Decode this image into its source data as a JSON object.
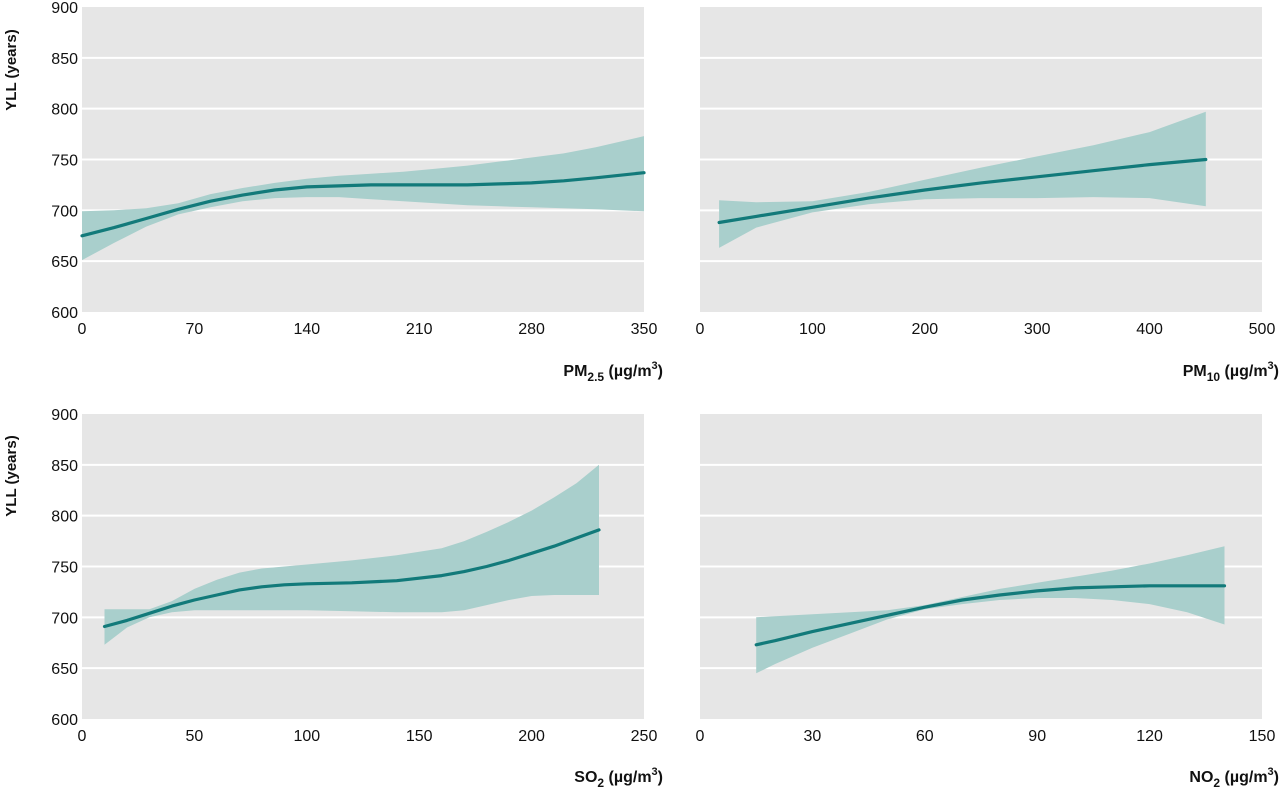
{
  "chart_data": [
    {
      "type": "line",
      "xlabel": {
        "base": "PM",
        "sub": "2.5",
        "unit": " (µg/m",
        "sup": "3",
        "close": ")"
      },
      "ylabel": "YLL (years)",
      "xlim": [
        0,
        350
      ],
      "ylim": [
        600,
        900
      ],
      "xticks": [
        0,
        70,
        140,
        210,
        280,
        350
      ],
      "yticks": [
        600,
        650,
        700,
        750,
        800,
        850,
        900
      ],
      "grid": true,
      "line_color": "#127a7a",
      "band_color": "#a9cfcc",
      "series": [
        {
          "x": [
            0,
            20,
            40,
            60,
            80,
            100,
            120,
            140,
            160,
            180,
            200,
            220,
            240,
            260,
            280,
            300,
            320,
            350
          ],
          "y": [
            675,
            683,
            692,
            701,
            709,
            715,
            720,
            723,
            724,
            725,
            725,
            725,
            725,
            726,
            727,
            729,
            732,
            737
          ],
          "lower": [
            651,
            668,
            684,
            696,
            703,
            709,
            712,
            713,
            713,
            711,
            709,
            707,
            705,
            704,
            703,
            702,
            701,
            699
          ],
          "upper": [
            699,
            700,
            702,
            707,
            716,
            722,
            727,
            731,
            734,
            736,
            738,
            741,
            744,
            748,
            752,
            756,
            762,
            773
          ]
        }
      ]
    },
    {
      "type": "line",
      "xlabel": {
        "base": "PM",
        "sub": "10",
        "unit": " (µg/m",
        "sup": "3",
        "close": ")"
      },
      "ylabel": "",
      "xlim": [
        0,
        500
      ],
      "ylim": [
        600,
        900
      ],
      "xticks": [
        0,
        100,
        200,
        300,
        400,
        500
      ],
      "yticks": [
        600,
        650,
        700,
        750,
        800,
        850,
        900
      ],
      "grid": true,
      "line_color": "#127a7a",
      "band_color": "#a9cfcc",
      "series": [
        {
          "x": [
            17,
            50,
            100,
            150,
            200,
            250,
            300,
            350,
            400,
            450
          ],
          "y": [
            688,
            694,
            703,
            712,
            720,
            727,
            733,
            739,
            745,
            750
          ],
          "lower": [
            663,
            683,
            698,
            706,
            711,
            712,
            712,
            713,
            712,
            704
          ],
          "upper": [
            710,
            708,
            709,
            718,
            730,
            742,
            753,
            764,
            777,
            797
          ]
        }
      ]
    },
    {
      "type": "line",
      "xlabel": {
        "base": "SO",
        "sub": "2",
        "unit": " (µg/m",
        "sup": "3",
        "close": ")"
      },
      "ylabel": "YLL (years)",
      "xlim": [
        0,
        250
      ],
      "ylim": [
        600,
        900
      ],
      "xticks": [
        0,
        50,
        100,
        150,
        200,
        250
      ],
      "yticks": [
        600,
        650,
        700,
        750,
        800,
        850,
        900
      ],
      "grid": true,
      "line_color": "#127a7a",
      "band_color": "#a9cfcc",
      "series": [
        {
          "x": [
            10,
            20,
            30,
            40,
            50,
            60,
            70,
            80,
            90,
            100,
            120,
            140,
            160,
            170,
            180,
            190,
            200,
            210,
            220,
            230
          ],
          "y": [
            691,
            697,
            704,
            711,
            717,
            722,
            727,
            730,
            732,
            733,
            734,
            736,
            741,
            745,
            750,
            756,
            763,
            770,
            778,
            786
          ],
          "lower": [
            673,
            690,
            700,
            705,
            707,
            707,
            707,
            707,
            707,
            707,
            706,
            705,
            705,
            707,
            712,
            717,
            721,
            722,
            722,
            722
          ],
          "upper": [
            708,
            708,
            708,
            716,
            728,
            737,
            744,
            748,
            750,
            752,
            756,
            761,
            768,
            775,
            784,
            794,
            805,
            818,
            832,
            850
          ]
        }
      ]
    },
    {
      "type": "line",
      "xlabel": {
        "base": "NO",
        "sub": "2",
        "unit": " (µg/m",
        "sup": "3",
        "close": ")"
      },
      "ylabel": "",
      "xlim": [
        0,
        150
      ],
      "ylim": [
        600,
        900
      ],
      "xticks": [
        0,
        30,
        60,
        90,
        120,
        150
      ],
      "yticks": [
        600,
        650,
        700,
        750,
        800,
        850,
        900
      ],
      "grid": true,
      "line_color": "#127a7a",
      "band_color": "#a9cfcc",
      "series": [
        {
          "x": [
            15,
            20,
            30,
            40,
            50,
            60,
            70,
            80,
            90,
            100,
            110,
            120,
            130,
            140
          ],
          "y": [
            673,
            677,
            686,
            694,
            702,
            710,
            717,
            722,
            726,
            729,
            730,
            731,
            731,
            731
          ],
          "lower": [
            645,
            654,
            670,
            684,
            698,
            708,
            713,
            717,
            719,
            719,
            717,
            713,
            705,
            693
          ],
          "upper": [
            700,
            701,
            703,
            705,
            707,
            712,
            720,
            728,
            734,
            740,
            746,
            753,
            761,
            770
          ]
        }
      ]
    }
  ]
}
